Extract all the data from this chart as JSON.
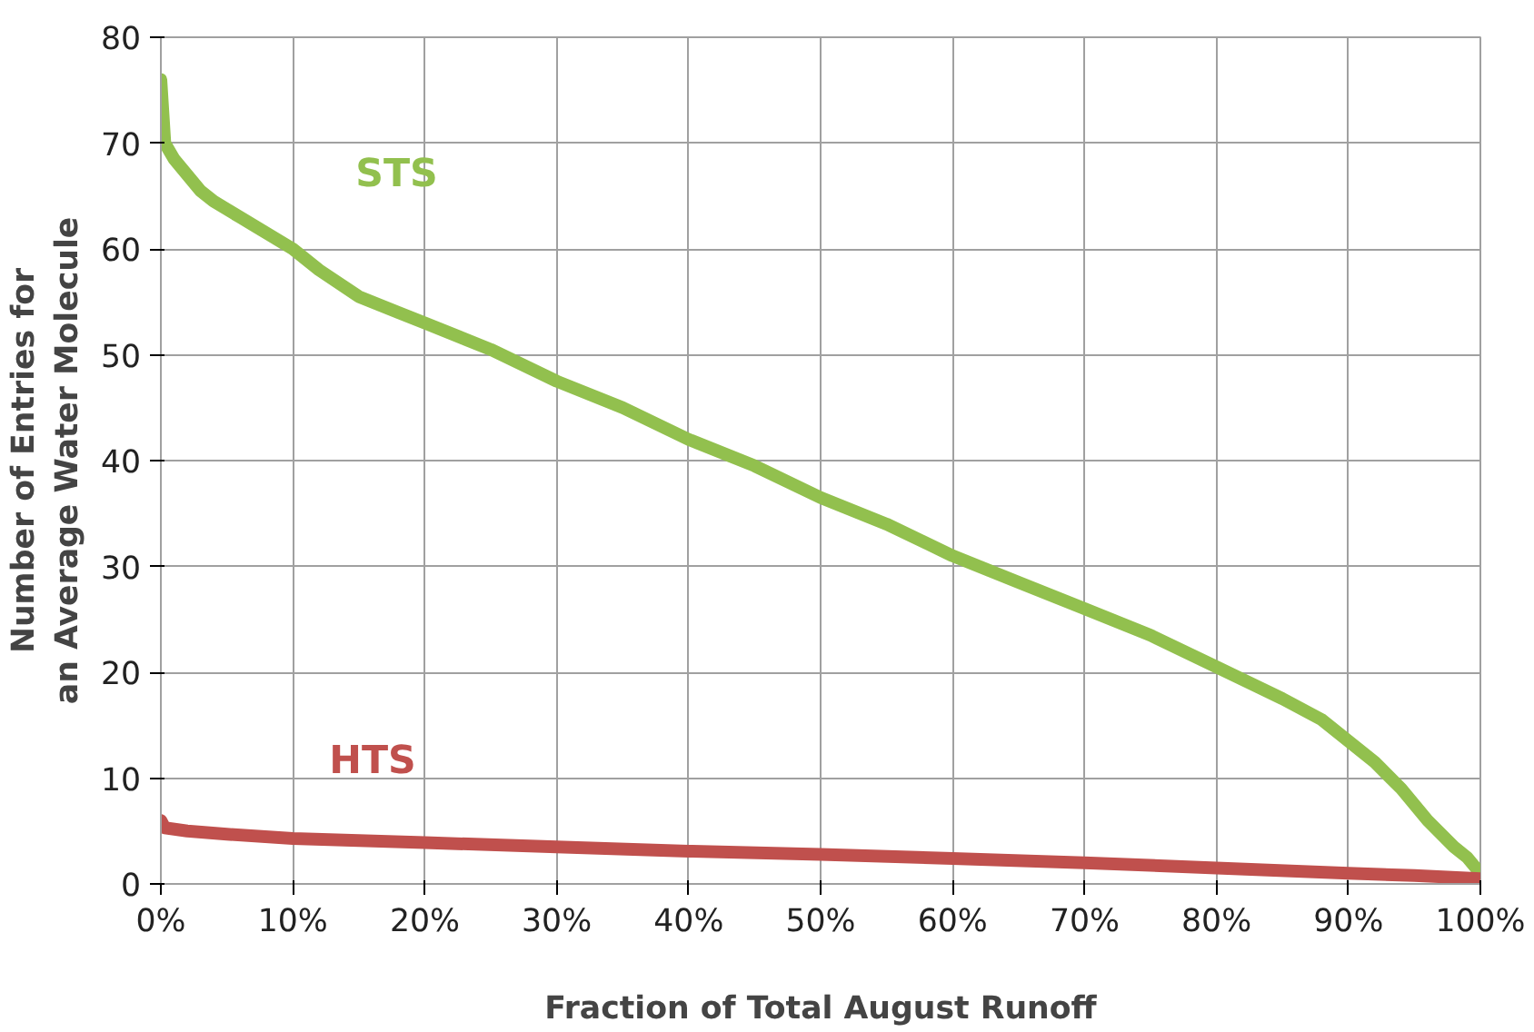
{
  "chart_data": {
    "type": "line",
    "xlabel": "Fraction of Total August Runoff",
    "ylabel": "Number of Entries for an Average Water Molecule",
    "xlim": [
      0,
      100
    ],
    "ylim": [
      0,
      80
    ],
    "xticks": [
      {
        "value": 0,
        "label": "0%"
      },
      {
        "value": 10,
        "label": "10%"
      },
      {
        "value": 20,
        "label": "20%"
      },
      {
        "value": 30,
        "label": "30%"
      },
      {
        "value": 40,
        "label": "40%"
      },
      {
        "value": 50,
        "label": "50%"
      },
      {
        "value": 60,
        "label": "60%"
      },
      {
        "value": 70,
        "label": "70%"
      },
      {
        "value": 80,
        "label": "80%"
      },
      {
        "value": 90,
        "label": "90%"
      },
      {
        "value": 100,
        "label": "100%"
      }
    ],
    "yticks": [
      0,
      10,
      20,
      30,
      40,
      50,
      60,
      70,
      80
    ],
    "grid": true,
    "marker": "none",
    "line_style": "solid",
    "series": [
      {
        "name": "STS",
        "color": "#92c04e",
        "x": [
          0,
          0.3,
          1,
          2,
          3,
          4,
          6,
          8,
          10,
          12,
          15,
          18,
          20,
          25,
          30,
          35,
          40,
          45,
          50,
          55,
          60,
          65,
          70,
          75,
          80,
          85,
          88,
          90,
          92,
          94,
          96,
          98,
          99,
          100
        ],
        "values": [
          76,
          70,
          68.5,
          67,
          65.5,
          64.5,
          63,
          61.5,
          60,
          58,
          55.5,
          54,
          53,
          50.5,
          47.5,
          45,
          42,
          39.5,
          36.5,
          34,
          31,
          28.5,
          26,
          23.5,
          20.5,
          17.5,
          15.5,
          13.5,
          11.5,
          9,
          6,
          3.5,
          2.5,
          1
        ]
      },
      {
        "name": "HTS",
        "color": "#c0504d",
        "x": [
          0,
          0.3,
          2,
          5,
          10,
          20,
          30,
          40,
          50,
          60,
          70,
          80,
          90,
          95,
          100
        ],
        "values": [
          6,
          5.3,
          5,
          4.7,
          4.3,
          3.9,
          3.5,
          3.1,
          2.8,
          2.4,
          2,
          1.5,
          1,
          0.8,
          0.5
        ]
      }
    ]
  }
}
